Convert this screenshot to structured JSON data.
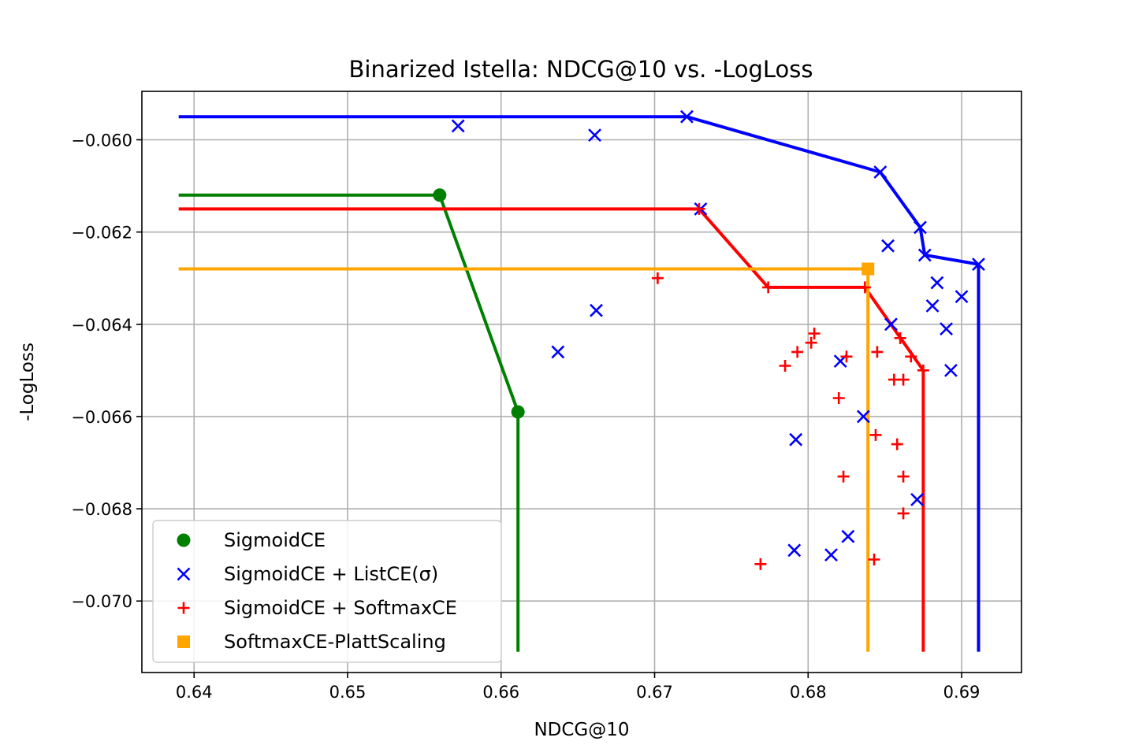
{
  "chart_data": {
    "type": "scatter",
    "title": "Binarized Istella: NDCG@10 vs. -LogLoss",
    "xlabel": "NDCG@10",
    "ylabel": "-LogLoss",
    "xlim": [
      0.6366,
      0.6939
    ],
    "ylim": [
      -0.07155,
      -0.05895
    ],
    "xticks": [
      0.64,
      0.65,
      0.66,
      0.67,
      0.68,
      0.69
    ],
    "xtick_labels": [
      "0.64",
      "0.65",
      "0.66",
      "0.67",
      "0.68",
      "0.69"
    ],
    "yticks": [
      -0.06,
      -0.062,
      -0.064,
      -0.066,
      -0.068,
      -0.07
    ],
    "ytick_labels": [
      "−0.060",
      "−0.062",
      "−0.064",
      "−0.066",
      "−0.068",
      "−0.070"
    ],
    "grid": true,
    "legend_position": "lower-left",
    "series": [
      {
        "name": "SigmoidCE",
        "marker": "circle",
        "color": "#008000",
        "points": [
          [
            0.656,
            -0.0612
          ],
          [
            0.6611,
            -0.0659
          ]
        ],
        "frontier": [
          [
            0.639,
            -0.0612
          ],
          [
            0.656,
            -0.0612
          ],
          [
            0.6611,
            -0.0659
          ],
          [
            0.6611,
            -0.0711
          ]
        ]
      },
      {
        "name": "SigmoidCE + ListCE(σ)",
        "marker": "x",
        "color": "#0000ff",
        "points": [
          [
            0.6572,
            -0.0597
          ],
          [
            0.6661,
            -0.0599
          ],
          [
            0.6721,
            -0.0595
          ],
          [
            0.673,
            -0.0615
          ],
          [
            0.6637,
            -0.0646
          ],
          [
            0.6662,
            -0.0637
          ],
          [
            0.6847,
            -0.0607
          ],
          [
            0.6873,
            -0.0619
          ],
          [
            0.6876,
            -0.0625
          ],
          [
            0.6852,
            -0.0623
          ],
          [
            0.6911,
            -0.0627
          ],
          [
            0.6884,
            -0.0631
          ],
          [
            0.69,
            -0.0634
          ],
          [
            0.6881,
            -0.0636
          ],
          [
            0.6854,
            -0.064
          ],
          [
            0.689,
            -0.0641
          ],
          [
            0.6821,
            -0.0648
          ],
          [
            0.6893,
            -0.065
          ],
          [
            0.6836,
            -0.066
          ],
          [
            0.6792,
            -0.0665
          ],
          [
            0.6871,
            -0.0678
          ],
          [
            0.6791,
            -0.0689
          ],
          [
            0.6826,
            -0.0686
          ],
          [
            0.6815,
            -0.069
          ]
        ],
        "frontier": [
          [
            0.639,
            -0.0595
          ],
          [
            0.6721,
            -0.0595
          ],
          [
            0.6847,
            -0.0607
          ],
          [
            0.6873,
            -0.0619
          ],
          [
            0.6876,
            -0.0625
          ],
          [
            0.6911,
            -0.0627
          ],
          [
            0.6911,
            -0.0711
          ]
        ]
      },
      {
        "name": "SigmoidCE + SoftmaxCE",
        "marker": "plus",
        "color": "#ff0000",
        "points": [
          [
            0.6729,
            -0.0615
          ],
          [
            0.6702,
            -0.063
          ],
          [
            0.6774,
            -0.0632
          ],
          [
            0.6837,
            -0.0632
          ],
          [
            0.6804,
            -0.0642
          ],
          [
            0.6802,
            -0.0644
          ],
          [
            0.6793,
            -0.0646
          ],
          [
            0.6785,
            -0.0649
          ],
          [
            0.6825,
            -0.0647
          ],
          [
            0.6845,
            -0.0646
          ],
          [
            0.686,
            -0.0643
          ],
          [
            0.6867,
            -0.0647
          ],
          [
            0.6875,
            -0.065
          ],
          [
            0.6856,
            -0.0652
          ],
          [
            0.6862,
            -0.0652
          ],
          [
            0.682,
            -0.0656
          ],
          [
            0.6844,
            -0.0664
          ],
          [
            0.6858,
            -0.0666
          ],
          [
            0.6823,
            -0.0673
          ],
          [
            0.6862,
            -0.0673
          ],
          [
            0.6862,
            -0.0681
          ],
          [
            0.6769,
            -0.0692
          ],
          [
            0.6843,
            -0.0691
          ]
        ],
        "frontier": [
          [
            0.639,
            -0.0615
          ],
          [
            0.6729,
            -0.0615
          ],
          [
            0.6774,
            -0.0632
          ],
          [
            0.6837,
            -0.0632
          ],
          [
            0.6875,
            -0.065
          ],
          [
            0.6875,
            -0.0711
          ]
        ]
      },
      {
        "name": "SoftmaxCE-PlattScaling",
        "marker": "square",
        "color": "#ffa500",
        "points": [
          [
            0.6839,
            -0.0628
          ]
        ],
        "frontier": [
          [
            0.639,
            -0.0628
          ],
          [
            0.6839,
            -0.0628
          ],
          [
            0.6839,
            -0.0711
          ]
        ]
      }
    ]
  }
}
